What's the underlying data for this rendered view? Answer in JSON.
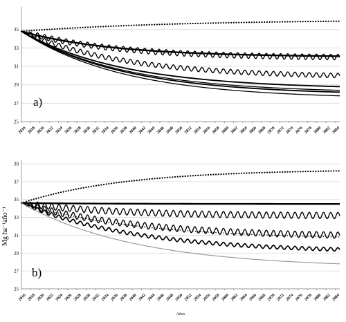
{
  "chart_data": [
    {
      "type": "line",
      "panel_label": "a)",
      "ylim": [
        25,
        37
      ],
      "yticks": [
        25,
        27,
        29,
        31,
        33,
        35
      ],
      "xlim": [
        2016,
        2085
      ],
      "xticks": [
        2016,
        2018,
        2020,
        2022,
        2024,
        2026,
        2028,
        2030,
        2032,
        2034,
        2036,
        2038,
        2040,
        2042,
        2044,
        2046,
        2048,
        2050,
        2052,
        2054,
        2056,
        2058,
        2060,
        2062,
        2064,
        2066,
        2068,
        2070,
        2072,
        2074,
        2076,
        2078,
        2080,
        2082,
        2084
      ],
      "xlabel": "",
      "ylabel": "",
      "grid": true,
      "series": [
        {
          "style": "dotted",
          "start": 34.8,
          "end": 35.9,
          "k": 0.03,
          "amp": 0,
          "color": "#000000",
          "width": 2.2
        },
        {
          "style": "solid",
          "start": 34.8,
          "end": 32.1,
          "k": 0.05,
          "amp": 0,
          "color": "#000000",
          "width": 2.4
        },
        {
          "style": "wave",
          "start": 34.8,
          "end": 32.0,
          "k": 0.05,
          "amp": 0.3,
          "color": "#000000",
          "width": 1.4
        },
        {
          "style": "wave",
          "start": 34.8,
          "end": 30.0,
          "k": 0.045,
          "amp": 0.25,
          "color": "#000000",
          "width": 1.4
        },
        {
          "style": "solid",
          "start": 34.8,
          "end": 28.8,
          "k": 0.045,
          "amp": 0,
          "color": "#000000",
          "width": 1.9
        },
        {
          "style": "solid",
          "start": 34.8,
          "end": 28.4,
          "k": 0.045,
          "amp": 0,
          "color": "#000000",
          "width": 1.3
        },
        {
          "style": "solid",
          "start": 34.8,
          "end": 28.2,
          "k": 0.045,
          "amp": 0,
          "color": "#000000",
          "width": 1.9
        },
        {
          "style": "solid",
          "start": 34.8,
          "end": 27.8,
          "k": 0.045,
          "amp": 0,
          "color": "#000000",
          "width": 1.3
        }
      ]
    },
    {
      "type": "line",
      "panel_label": "b)",
      "ylim": [
        25,
        39
      ],
      "yticks": [
        25,
        27,
        29,
        31,
        33,
        35,
        37,
        39
      ],
      "xlim": [
        2016,
        2085
      ],
      "xticks": [
        2016,
        2018,
        2020,
        2022,
        2024,
        2026,
        2028,
        2030,
        2032,
        2034,
        2036,
        2038,
        2040,
        2042,
        2044,
        2046,
        2048,
        2050,
        2052,
        2054,
        2056,
        2058,
        2060,
        2062,
        2064,
        2066,
        2068,
        2070,
        2072,
        2074,
        2076,
        2078,
        2080,
        2082,
        2084
      ],
      "xlabel": "Años",
      "ylabel": "Mg ha⁻¹año⁻¹",
      "grid": true,
      "series": [
        {
          "style": "dotted",
          "start": 34.6,
          "end": 38.2,
          "k": 0.045,
          "amp": 0,
          "color": "#000000",
          "width": 2.2
        },
        {
          "style": "solid",
          "start": 34.6,
          "end": 34.5,
          "k": 0.05,
          "amp": 0,
          "color": "#000000",
          "width": 2.4
        },
        {
          "style": "wave",
          "start": 34.6,
          "end": 33.2,
          "k": 0.05,
          "amp": 0.35,
          "color": "#000000",
          "width": 1.4
        },
        {
          "style": "wave",
          "start": 34.6,
          "end": 31.0,
          "k": 0.04,
          "amp": 0.35,
          "color": "#000000",
          "width": 1.4
        },
        {
          "style": "dotted",
          "start": 34.6,
          "end": 30.8,
          "k": 0.04,
          "amp": 0,
          "color": "#000000",
          "width": 1.5
        },
        {
          "style": "wave",
          "start": 34.6,
          "end": 29.4,
          "k": 0.04,
          "amp": 0.2,
          "color": "#000000",
          "width": 1.7
        },
        {
          "style": "solid",
          "start": 34.6,
          "end": 27.8,
          "k": 0.04,
          "amp": 0,
          "color": "#999999",
          "width": 1.2
        }
      ]
    }
  ]
}
